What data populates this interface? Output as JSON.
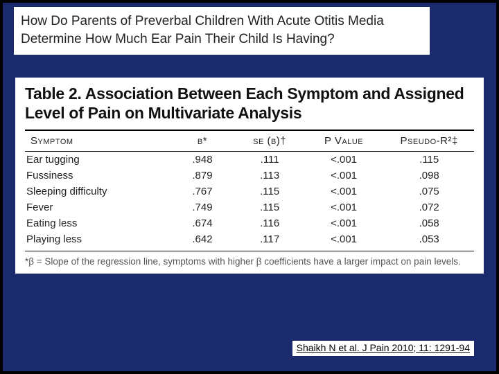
{
  "title": "How Do Parents of Preverbal Children With Acute Otitis Media Determine How Much Ear Pain Their Child Is Having?",
  "table": {
    "caption": "Table 2. Association Between Each Symptom and Assigned Level of Pain on Multivariate Analysis",
    "columns": [
      "Symptom",
      "β*",
      "se (β)†",
      "P Value",
      "Pseudo-R²‡"
    ],
    "rows": [
      [
        "Ear tugging",
        ".948",
        ".111",
        "<.001",
        ".115"
      ],
      [
        "Fussiness",
        ".879",
        ".113",
        "<.001",
        ".098"
      ],
      [
        "Sleeping difficulty",
        ".767",
        ".115",
        "<.001",
        ".075"
      ],
      [
        "Fever",
        ".749",
        ".115",
        "<.001",
        ".072"
      ],
      [
        "Eating less",
        ".674",
        ".116",
        "<.001",
        ".058"
      ],
      [
        "Playing less",
        ".642",
        ".117",
        "<.001",
        ".053"
      ]
    ],
    "footnote": "*β = Slope of the regression line, symptoms with higher β coefficients have a larger impact on pain levels."
  },
  "citation": "Shaikh N et al. J Pain 2010; 11: 1291-94",
  "colors": {
    "slide_bg": "#1a2a6c",
    "outer_bg": "#000000",
    "panel_bg": "#ffffff",
    "text": "#222222",
    "footnote": "#555555"
  }
}
